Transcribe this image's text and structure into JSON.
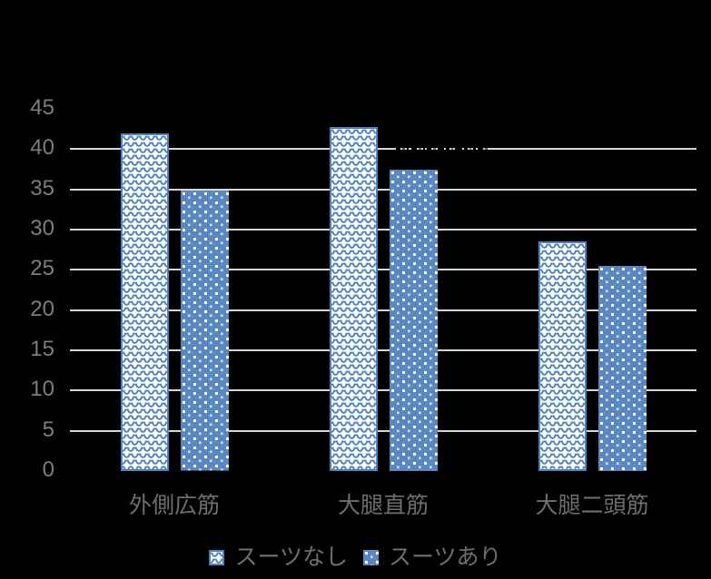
{
  "chart_data": {
    "type": "bar",
    "categories": [
      "外側広筋",
      "大腿直筋",
      "大腿二頭筋"
    ],
    "series": [
      {
        "name": "スーツなし",
        "values": [
          42.0,
          42.8,
          28.5
        ],
        "fill": "wave-pattern-on-white"
      },
      {
        "name": "スーツあり",
        "values": [
          34.8,
          37.5,
          25.5
        ],
        "fill": "white-dots-on-blue"
      }
    ],
    "ytick_labels": [
      "0",
      "5",
      "10",
      "15",
      "20",
      "25",
      "30",
      "35",
      "40",
      "45"
    ],
    "ytick_step": 5,
    "ylim": [
      0,
      45
    ],
    "grid": true,
    "gridline_values": [
      5,
      10,
      15,
      20,
      25,
      30,
      35,
      40
    ],
    "legend_position": "bottom",
    "title": ""
  },
  "colors": {
    "background": "#000000",
    "gridline": "#d6d6d6",
    "axis_text": "#7d7d7d",
    "category_text": "#6e6e6e",
    "legend_text": "#6e6e6e",
    "series1_pattern": "#4f81bd",
    "series1_background": "#ffffff",
    "series2_background": "#5b87c0",
    "series2_dot": "#ffffff"
  }
}
